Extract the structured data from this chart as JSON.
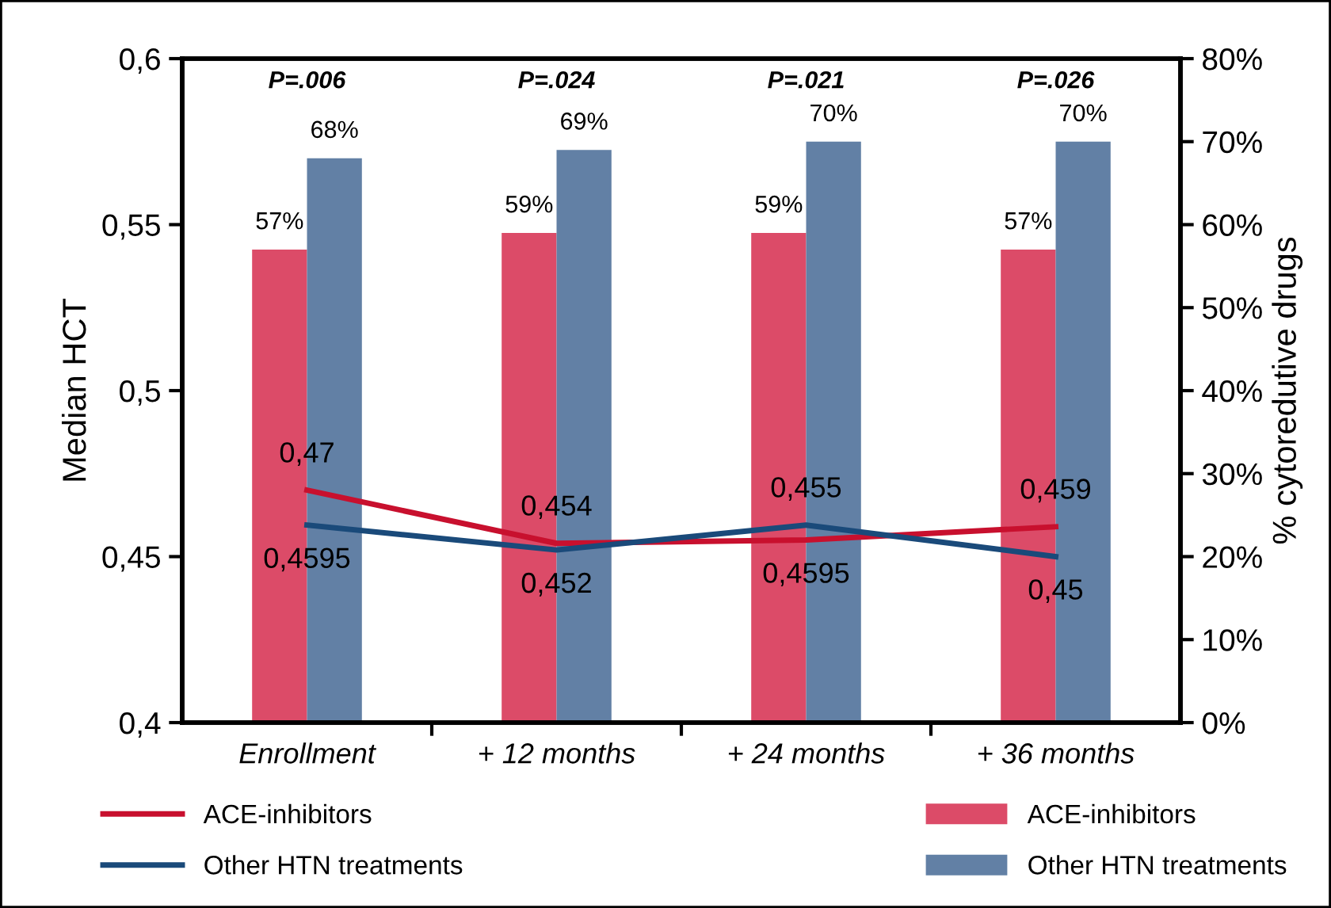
{
  "chart_data": {
    "type": "bar",
    "ylabel": "Median HCT",
    "y2label": "% cytoredutive drugs",
    "categories": [
      "Enrollment",
      "+ 12 months",
      "+ 24 months",
      "+ 36 months"
    ],
    "series": [
      {
        "name": "ACE-inhibitors",
        "axis": "y2",
        "color": "#dc4b68",
        "values": [
          57,
          59,
          59,
          57
        ],
        "value_labels": [
          "57%",
          "59%",
          "59%",
          "57%"
        ]
      },
      {
        "name": "Other HTN treatments",
        "axis": "y2",
        "color": "#6280a5",
        "values": [
          68,
          69,
          70,
          70
        ],
        "value_labels": [
          "68%",
          "69%",
          "70%",
          "70%"
        ]
      },
      {
        "name": "ACE-inhibitors",
        "type": "line",
        "axis": "y",
        "color": "#c8102e",
        "values": [
          0.47,
          0.454,
          0.455,
          0.459
        ],
        "value_labels": [
          "0,47",
          "0,454",
          "0,455",
          "0,459"
        ]
      },
      {
        "name": "Other HTN treatments",
        "type": "line",
        "axis": "y",
        "color": "#1a4a7a",
        "values": [
          0.4595,
          0.452,
          0.4595,
          0.45
        ],
        "value_labels": [
          "0,4595",
          "0,452",
          "0,4595",
          "0,45"
        ]
      }
    ],
    "ylim": [
      0.4,
      0.6
    ],
    "yticks": [
      {
        "value": 0.4,
        "label": "0,4"
      },
      {
        "value": 0.45,
        "label": "0,45"
      },
      {
        "value": 0.5,
        "label": "0,5"
      },
      {
        "value": 0.55,
        "label": "0,55"
      },
      {
        "value": 0.6,
        "label": "0,6"
      }
    ],
    "y2lim": [
      0,
      80
    ],
    "y2ticks": [
      {
        "value": 0,
        "label": "0%"
      },
      {
        "value": 10,
        "label": "10%"
      },
      {
        "value": 20,
        "label": "20%"
      },
      {
        "value": 30,
        "label": "30%"
      },
      {
        "value": 40,
        "label": "40%"
      },
      {
        "value": 50,
        "label": "50%"
      },
      {
        "value": 60,
        "label": "60%"
      },
      {
        "value": 70,
        "label": "70%"
      },
      {
        "value": 80,
        "label": "80%"
      }
    ],
    "annotations": [
      "P=.006",
      "P=.024",
      "P=.021",
      "P=.026"
    ],
    "grid": false,
    "legend": "bottom"
  }
}
